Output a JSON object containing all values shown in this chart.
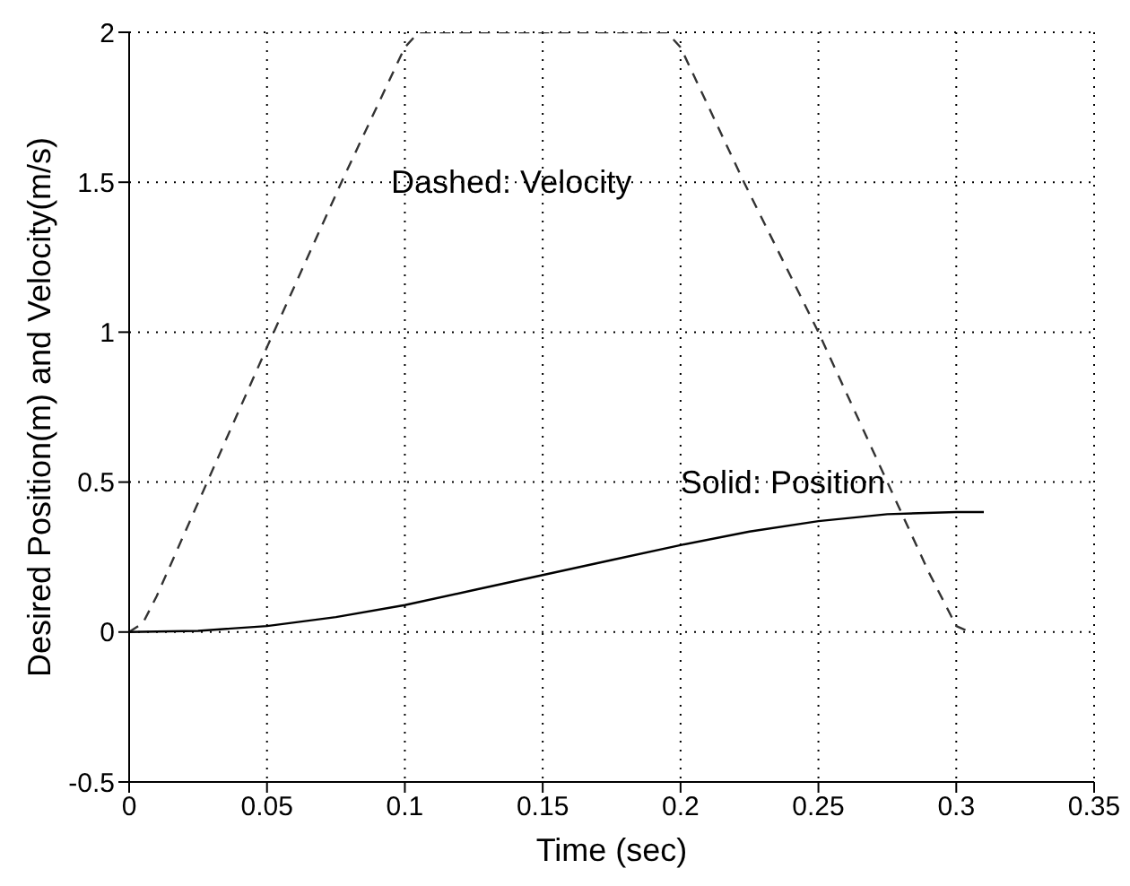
{
  "chart_data": {
    "type": "line",
    "xlabel": "Time (sec)",
    "ylabel": "Desired Position(m) and Velocity(m/s)",
    "xlim": [
      0,
      0.35
    ],
    "xticks": [
      0,
      0.05,
      0.1,
      0.15,
      0.2,
      0.25,
      0.3,
      0.35
    ],
    "ylim": [
      -0.5,
      2
    ],
    "yticks": [
      -0.5,
      0,
      0.5,
      1,
      1.5,
      2
    ],
    "grid": true,
    "marker": "none",
    "annotations": [
      "Dashed: Velocity",
      "Solid: Position"
    ],
    "series": [
      {
        "color": "#333333",
        "line_style": "dashed",
        "x": [
          0,
          0.005,
          0.01,
          0.05,
          0.077,
          0.1,
          0.105,
          0.195,
          0.2,
          0.223,
          0.25,
          0.29,
          0.3,
          0.305
        ],
        "values": [
          0,
          0.03,
          0.12,
          0.95,
          1.5,
          1.95,
          2,
          2,
          1.95,
          1.5,
          1.0,
          0.2,
          0.02,
          0
        ]
      },
      {
        "color": "#000000",
        "line_style": "solid",
        "x": [
          0,
          0.025,
          0.05,
          0.075,
          0.1,
          0.125,
          0.15,
          0.175,
          0.2,
          0.225,
          0.25,
          0.275,
          0.3,
          0.31
        ],
        "values": [
          0,
          0.004,
          0.02,
          0.05,
          0.09,
          0.14,
          0.19,
          0.24,
          0.29,
          0.335,
          0.37,
          0.393,
          0.4,
          0.4
        ]
      }
    ]
  }
}
